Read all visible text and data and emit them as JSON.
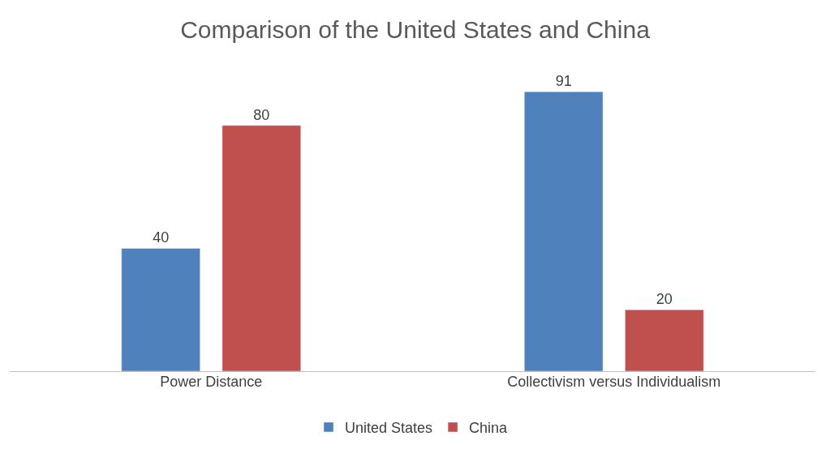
{
  "chart_data": {
    "type": "bar",
    "title": "Comparison of the United States and China",
    "categories": [
      "Power Distance",
      "Collectivism versus Individualism"
    ],
    "series": [
      {
        "name": "United States",
        "color": "#4f81bd",
        "values": [
          40,
          91
        ]
      },
      {
        "name": "China",
        "color": "#c0504d",
        "values": [
          80,
          20
        ]
      }
    ],
    "data_labels": true,
    "legend": "bottom",
    "tick_labels": "x"
  }
}
